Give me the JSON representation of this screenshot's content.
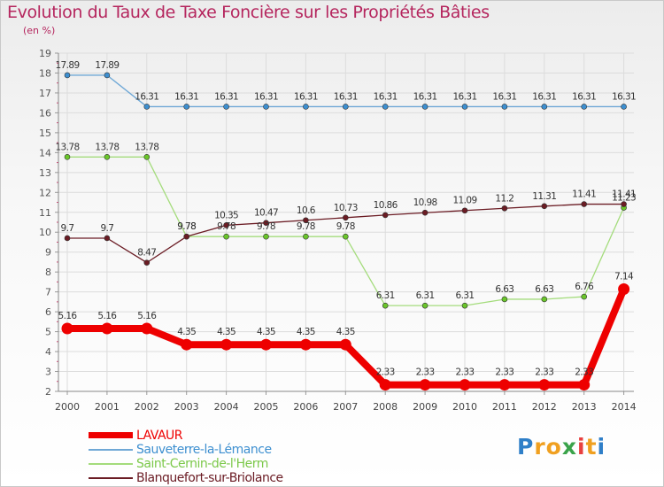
{
  "header": {
    "title": "Evolution du Taux de Taxe Foncière sur les Propriétés Bâties",
    "subtitle": "(en %)"
  },
  "logo": {
    "letters": [
      "P",
      "r",
      "o",
      "x",
      "i",
      "t",
      "i"
    ],
    "colors": [
      "#2f7fc8",
      "#f0a020",
      "#f0a020",
      "#3aa34a",
      "#e84040",
      "#f0a020",
      "#2f7fc8"
    ]
  },
  "chart_data": {
    "type": "line",
    "title": "Evolution du Taux de Taxe Foncière sur les Propriétés Bâties",
    "ylabel": "(en %)",
    "xlabel": "",
    "categories": [
      "2000",
      "2001",
      "2002",
      "2003",
      "2004",
      "2005",
      "2006",
      "2007",
      "2008",
      "2009",
      "2010",
      "2011",
      "2012",
      "2013",
      "2014"
    ],
    "ylim": [
      2,
      19
    ],
    "yticks": [
      "2",
      "3",
      "4",
      "5",
      "6",
      "7",
      "8",
      "9",
      "10",
      "11",
      "12",
      "13",
      "14",
      "15",
      "16",
      "17",
      "18",
      "19"
    ],
    "grid": true,
    "legend": "bottom-left",
    "series": [
      {
        "name": "LAVAUR",
        "key": "lavaur",
        "color": "#ee0000",
        "marker": "#ee0000",
        "values": [
          5.16,
          5.16,
          5.16,
          4.35,
          4.35,
          4.35,
          4.35,
          4.35,
          2.33,
          2.33,
          2.33,
          2.33,
          2.33,
          2.33,
          7.14
        ],
        "labels": [
          "5.16",
          "5.16",
          "5.16",
          "4.35",
          "4.35",
          "4.35",
          "4.35",
          "4.35",
          "2.33",
          "2.33",
          "2.33",
          "2.33",
          "2.33",
          "2.33",
          "7.14"
        ]
      },
      {
        "name": "Sauveterre-la-Lémance",
        "key": "sauveterre",
        "color": "#6fa8d6",
        "marker": "#3d8fd0",
        "values": [
          17.89,
          17.89,
          16.31,
          16.31,
          16.31,
          16.31,
          16.31,
          16.31,
          16.31,
          16.31,
          16.31,
          16.31,
          16.31,
          16.31,
          16.31
        ],
        "labels": [
          "17.89",
          "17.89",
          "16.31",
          "16.31",
          "16.31",
          "16.31",
          "16.31",
          "16.31",
          "16.31",
          "16.31",
          "16.31",
          "16.31",
          "16.31",
          "16.31",
          "16.31"
        ]
      },
      {
        "name": "Saint-Cernin-de-l'Herm",
        "key": "saintcernin",
        "color": "#a4dc7c",
        "marker": "#6ac62a",
        "values": [
          13.78,
          13.78,
          13.78,
          9.78,
          9.78,
          9.78,
          9.78,
          9.78,
          6.31,
          6.31,
          6.31,
          6.63,
          6.63,
          6.76,
          11.23
        ],
        "labels": [
          "13.78",
          "13.78",
          "13.78",
          "9.78",
          "9.78",
          "9.78",
          "9.78",
          "9.78",
          "6.31",
          "6.31",
          "6.31",
          "6.63",
          "6.63",
          "6.76",
          "11.23"
        ]
      },
      {
        "name": "Blanquefort-sur-Briolance",
        "key": "blanquefort",
        "color": "#6b1c24",
        "marker": "#6b1c24",
        "values": [
          9.7,
          9.7,
          8.47,
          9.78,
          10.35,
          10.47,
          10.6,
          10.73,
          10.86,
          10.98,
          11.09,
          11.2,
          11.31,
          11.41,
          11.41
        ],
        "labels": [
          "9.7",
          "9.7",
          "8.47",
          "9.78",
          "10.35",
          "10.47",
          "10.6",
          "10.73",
          "10.86",
          "10.98",
          "11.09",
          "11.2",
          "11.31",
          "11.41",
          "11.41"
        ]
      }
    ]
  }
}
